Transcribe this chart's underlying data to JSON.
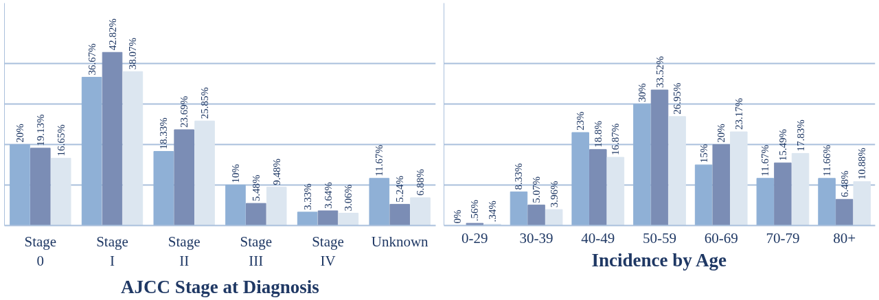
{
  "chart_data": [
    {
      "type": "bar",
      "title": "AJCC Stage at Diagnosis",
      "categories": [
        "Stage\n0",
        "Stage\nI",
        "Stage\nII",
        "Stage\nIII",
        "Stage\nIV",
        "Unknown"
      ],
      "series": [
        {
          "color": "#8fb0d6",
          "values": [
            20,
            36.67,
            18.33,
            10,
            3.33,
            11.67
          ],
          "value_labels": [
            "20%",
            "36.67%",
            "18.33%",
            "10%",
            "3.33%",
            "11.67%"
          ]
        },
        {
          "color": "#7b8db5",
          "values": [
            19.13,
            42.82,
            23.69,
            5.48,
            3.64,
            5.24
          ],
          "value_labels": [
            "19.13%",
            "42.82%",
            "23.69%",
            "5.48%",
            "3.64%",
            "5.24%"
          ]
        },
        {
          "color": "#dce6f0",
          "values": [
            16.65,
            38.07,
            25.85,
            9.48,
            3.06,
            6.88
          ],
          "value_labels": [
            "16.65%",
            "38.07%",
            "25.85%",
            "9.48%",
            "3.06%",
            "6.88%"
          ]
        }
      ],
      "ylim": [
        0,
        55
      ],
      "yticks": [
        {
          "value": 0,
          "label": null
        },
        {
          "value": 10,
          "label": null
        },
        {
          "value": 20,
          "label": null
        },
        {
          "value": 30,
          "label": null
        },
        {
          "value": 40,
          "label": null
        }
      ],
      "grid": "y",
      "tick_labels": "x"
    },
    {
      "type": "bar",
      "title": "Incidence by Age",
      "categories": [
        "0-29",
        "30-39",
        "40-49",
        "50-59",
        "60-69",
        "70-79",
        "80+"
      ],
      "series": [
        {
          "color": "#8fb0d6",
          "values": [
            0,
            8.33,
            23,
            30,
            15,
            11.67,
            11.66
          ],
          "value_labels": [
            "0%",
            "8.33%",
            "23%",
            "30%",
            "15%",
            "11.67%",
            "11.66%"
          ]
        },
        {
          "color": "#7b8db5",
          "values": [
            0.56,
            5.07,
            18.8,
            33.52,
            20,
            15.49,
            6.48
          ],
          "value_labels": [
            ".56%",
            "5.07%",
            "18.8%",
            "33.52%",
            "20%",
            "15.49%",
            "6.48%"
          ]
        },
        {
          "color": "#dce6f0",
          "values": [
            0.34,
            3.96,
            16.87,
            26.95,
            23.17,
            17.83,
            10.88
          ],
          "value_labels": [
            ".34%",
            "3.96%",
            "16.87%",
            "26.95%",
            "23.17%",
            "17.83%",
            "10.88%"
          ]
        }
      ],
      "ylim": [
        0,
        55
      ],
      "yticks": [
        {
          "value": 0,
          "label": null
        },
        {
          "value": 10,
          "label": null
        },
        {
          "value": 20,
          "label": null
        },
        {
          "value": 30,
          "label": null
        },
        {
          "value": 40,
          "label": null
        }
      ],
      "grid": "y",
      "tick_labels": "x"
    }
  ]
}
